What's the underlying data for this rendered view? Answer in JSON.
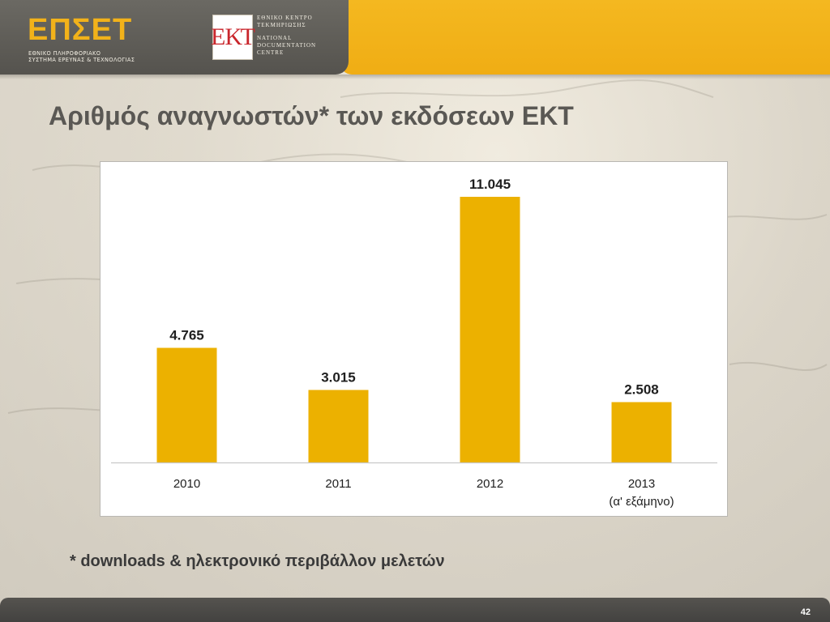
{
  "header": {
    "epset_logo": "ΕΠΣΕΤ",
    "epset_sub_line1": "ΕΘΝΙΚΟ ΠΛΗΡΟΦΟΡΙΑΚΟ",
    "epset_sub_line2": "ΣΥΣΤΗΜΑ ΕΡΕΥΝΑΣ & ΤΕΧΝΟΛΟΓΙΑΣ",
    "ekt_logo": "ΕΚΤ",
    "ekt_line1": "ΕΘΝΙΚΟ ΚΕΝΤΡΟ",
    "ekt_line2": "ΤΕΚΜΗΡΙΩΣΗΣ",
    "ekt_line3": "NATIONAL",
    "ekt_line4": "DOCUMENTATION",
    "ekt_line5": "CENTRE"
  },
  "title": "Αριθμός αναγνωστών* των εκδόσεων ΕΚΤ",
  "footnote": "* downloads & ηλεκτρονικό περιβάλλον μελετών",
  "page_number": "42",
  "colors": {
    "bar": "#ecb100",
    "header_gold": "#f0ad14",
    "header_dark": "#5f5d58",
    "title": "#5a5854"
  },
  "chart_data": {
    "type": "bar",
    "categories": [
      "2010",
      "2011",
      "2012",
      "2013"
    ],
    "category_sublabels": [
      "",
      "",
      "",
      "(α' εξάμηνο)"
    ],
    "values": [
      4765,
      3015,
      11045,
      2508
    ],
    "data_labels": [
      "4.765",
      "3.015",
      "11.045",
      "2.508"
    ],
    "title": "",
    "xlabel": "",
    "ylabel": "",
    "ylim": [
      0,
      11045
    ],
    "grid": false,
    "legend": "none"
  }
}
